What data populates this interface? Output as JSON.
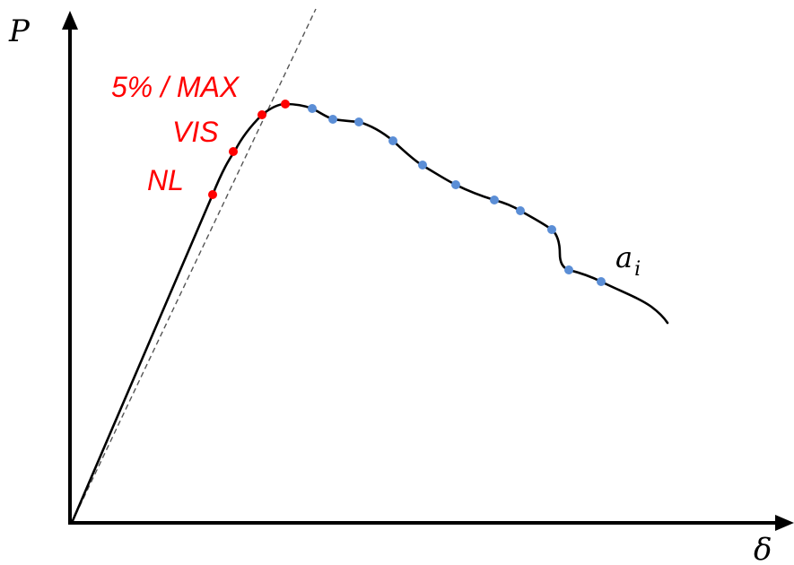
{
  "axes": {
    "y_label": "P",
    "x_label": "δ"
  },
  "labels": {
    "nl": "NL",
    "vis": "VIS",
    "max": "5% / MAX",
    "curve_base": "a",
    "curve_sub": "i"
  },
  "colors": {
    "critical": "#ff0000",
    "propagation": "#5b8ed6",
    "curve": "#000000",
    "axis": "#000000",
    "dashed": "#555555"
  }
}
